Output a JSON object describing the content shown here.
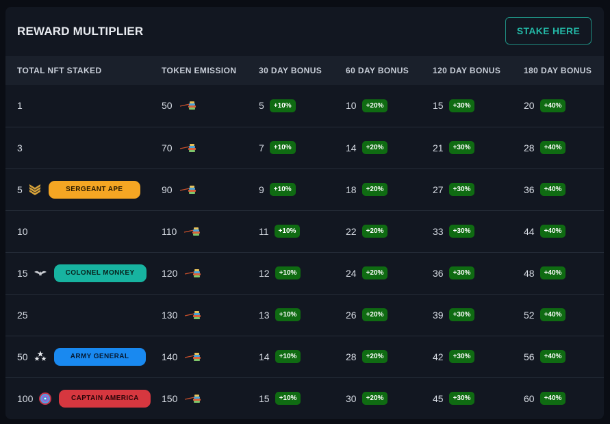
{
  "header": {
    "title": "REWARD MULTIPLIER",
    "stake_button": "STAKE HERE"
  },
  "columns": [
    "TOTAL NFT STAKED",
    "TOKEN EMISSION",
    "30 DAY BONUS",
    "60 DAY BONUS",
    "120 DAY BONUS",
    "180 DAY BONUS"
  ],
  "colors": {
    "accent": "#23b8a6",
    "bonus_badge": "#0f6b12",
    "sergeant": "#f5a623",
    "colonel": "#17b3a0",
    "general": "#1989f0",
    "captain": "#d6373f"
  },
  "rows": [
    {
      "staked": "1",
      "emission": "50",
      "b30": "5",
      "b30l": "+10%",
      "b60": "10",
      "b60l": "+20%",
      "b120": "15",
      "b120l": "+30%",
      "b180": "20",
      "b180l": "+40%"
    },
    {
      "staked": "3",
      "emission": "70",
      "b30": "7",
      "b30l": "+10%",
      "b60": "14",
      "b60l": "+20%",
      "b120": "21",
      "b120l": "+30%",
      "b180": "28",
      "b180l": "+40%"
    },
    {
      "staked": "5",
      "emission": "90",
      "b30": "9",
      "b30l": "+10%",
      "b60": "18",
      "b60l": "+20%",
      "b120": "27",
      "b120l": "+30%",
      "b180": "36",
      "b180l": "+40%",
      "rank_label": "SERGEANT APE",
      "rank_icon": "sergeant-chevron-icon"
    },
    {
      "staked": "10",
      "emission": "110",
      "b30": "11",
      "b30l": "+10%",
      "b60": "22",
      "b60l": "+20%",
      "b120": "33",
      "b120l": "+30%",
      "b180": "44",
      "b180l": "+40%"
    },
    {
      "staked": "15",
      "emission": "120",
      "b30": "12",
      "b30l": "+10%",
      "b60": "24",
      "b60l": "+20%",
      "b120": "36",
      "b120l": "+30%",
      "b180": "48",
      "b180l": "+40%",
      "rank_label": "COLONEL MONKEY",
      "rank_icon": "eagle-icon"
    },
    {
      "staked": "25",
      "emission": "130",
      "b30": "13",
      "b30l": "+10%",
      "b60": "26",
      "b60l": "+20%",
      "b120": "39",
      "b120l": "+30%",
      "b180": "52",
      "b180l": "+40%"
    },
    {
      "staked": "50",
      "emission": "140",
      "b30": "14",
      "b30l": "+10%",
      "b60": "28",
      "b60l": "+20%",
      "b120": "42",
      "b120l": "+30%",
      "b180": "56",
      "b180l": "+40%",
      "rank_label": "ARMY GENERAL",
      "rank_icon": "stars-icon"
    },
    {
      "staked": "100",
      "emission": "150",
      "b30": "15",
      "b30l": "+10%",
      "b60": "30",
      "b60l": "+20%",
      "b120": "45",
      "b120l": "+30%",
      "b180": "60",
      "b180l": "+40%",
      "rank_label": "CAPTAIN AMERICA",
      "rank_icon": "shield-icon"
    }
  ]
}
